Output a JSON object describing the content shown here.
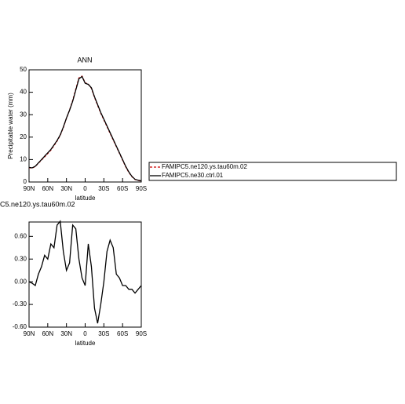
{
  "chart_data": [
    {
      "type": "line",
      "title": "ANN",
      "xlabel": "latitude",
      "ylabel": "Precipitable water (mm)",
      "x": [
        90,
        85,
        80,
        75,
        70,
        65,
        60,
        55,
        50,
        45,
        40,
        35,
        30,
        25,
        20,
        15,
        10,
        5,
        0,
        -5,
        -10,
        -15,
        -20,
        -25,
        -30,
        -35,
        -40,
        -45,
        -50,
        -55,
        -60,
        -65,
        -70,
        -75,
        -80,
        -85,
        -90
      ],
      "xlim": [
        90,
        -90
      ],
      "xticks": [
        {
          "value": 90,
          "label": "90N"
        },
        {
          "value": 60,
          "label": "60N"
        },
        {
          "value": 30,
          "label": "30N"
        },
        0,
        {
          "value": -30,
          "label": "30S"
        },
        {
          "value": -60,
          "label": "60S"
        },
        {
          "value": -90,
          "label": "90S"
        }
      ],
      "ylim": [
        0,
        50
      ],
      "yticks": [
        0,
        10,
        20,
        30,
        40,
        50
      ],
      "legend": "right",
      "series": [
        {
          "name": "FAMIPC5.ne120.ys.tau60m.02",
          "color": "#cc0000",
          "dash": true,
          "values": [
            6.4,
            6.2,
            6.9,
            8.4,
            9.8,
            11.2,
            12.7,
            14.2,
            16.2,
            18.3,
            20.8,
            24.3,
            28.4,
            32.1,
            36.3,
            41.4,
            46.4,
            47.2,
            44.2,
            43.6,
            41.8,
            37.7,
            34.2,
            30.7,
            27.7,
            24.7,
            21.7,
            18.7,
            15.8,
            12.8,
            9.8,
            6.8,
            4.3,
            2.4,
            1.1,
            0.7,
            0.4
          ]
        },
        {
          "name": "FAMIPC5.ne30.ctrl.01",
          "color": "#000000",
          "dash": false,
          "values": [
            6.5,
            6.3,
            7,
            8.5,
            10,
            11.5,
            13,
            14.5,
            16.5,
            18.5,
            21,
            24.5,
            28.5,
            32,
            36,
            41,
            46,
            47,
            44,
            43.5,
            42,
            38,
            34.5,
            31,
            28,
            25,
            22,
            19,
            16,
            13,
            10,
            7,
            4.5,
            2.5,
            1.2,
            0.8,
            0.5
          ]
        }
      ]
    },
    {
      "type": "line",
      "title": "C5.ne120.ys.tau60m.02",
      "xlabel": "latitude",
      "x": [
        90,
        85,
        80,
        75,
        70,
        65,
        60,
        55,
        50,
        45,
        40,
        35,
        30,
        25,
        20,
        15,
        10,
        5,
        0,
        -5,
        -10,
        -15,
        -20,
        -25,
        -30,
        -35,
        -40,
        -45,
        -50,
        -55,
        -60,
        -65,
        -70,
        -75,
        -80,
        -85,
        -90
      ],
      "xlim": [
        90,
        -90
      ],
      "xticks": [
        {
          "value": 90,
          "label": "90N"
        },
        {
          "value": 60,
          "label": "60N"
        },
        {
          "value": 30,
          "label": "30N"
        },
        0,
        {
          "value": -30,
          "label": "30S"
        },
        {
          "value": -60,
          "label": "60S"
        },
        {
          "value": -90,
          "label": "90S"
        }
      ],
      "ylim": [
        -0.6,
        0.79
      ],
      "yticks": [
        {
          "value": -0.6,
          "label": "-0.60"
        },
        {
          "value": -0.3,
          "label": "-0.30"
        },
        {
          "value": 0,
          "label": "0.00"
        },
        {
          "value": 0.3,
          "label": "0.30"
        },
        {
          "value": 0.6,
          "label": "0.60"
        }
      ],
      "series": [
        {
          "color": "#000000",
          "values": [
            0,
            -0.02,
            -0.05,
            0.1,
            0.2,
            0.35,
            0.3,
            0.5,
            0.45,
            0.75,
            0.8,
            0.4,
            0.15,
            0.25,
            0.75,
            0.7,
            0.3,
            0.05,
            -0.05,
            0.5,
            0.2,
            -0.35,
            -0.55,
            -0.3,
            0,
            0.4,
            0.55,
            0.45,
            0.1,
            0.05,
            -0.05,
            -0.05,
            -0.1,
            -0.1,
            -0.15,
            -0.1,
            -0.05
          ]
        }
      ]
    }
  ]
}
